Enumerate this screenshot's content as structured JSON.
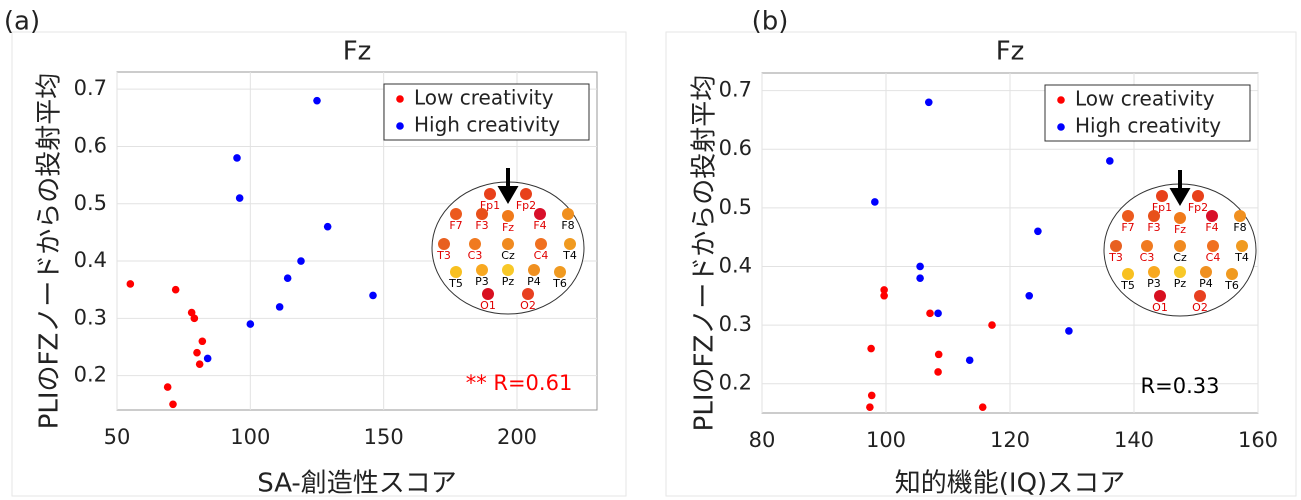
{
  "chart_data": [
    {
      "type": "scatter",
      "panel_label": "(a)",
      "title": "Fz",
      "x_label": "SA-創造性スコア",
      "y_label": "PLIのFZノードからの投射平均",
      "xlim": [
        50,
        230
      ],
      "ylim": [
        0.14,
        0.73
      ],
      "xticks": [
        50,
        100,
        150,
        200
      ],
      "yticks": [
        0.2,
        0.3,
        0.4,
        0.5,
        0.6,
        0.7
      ],
      "grid": true,
      "legend": "upper right",
      "series": [
        {
          "name": "Low creativity",
          "color": "#ff0000",
          "x": [
            55,
            72,
            78,
            79,
            82,
            80,
            81,
            69,
            71
          ],
          "values": [
            0.36,
            0.35,
            0.31,
            0.3,
            0.26,
            0.24,
            0.22,
            0.18,
            0.15
          ]
        },
        {
          "name": "High creativity",
          "color": "#0000ff",
          "x": [
            125,
            95,
            96,
            129,
            119,
            114,
            111,
            100,
            146,
            84
          ],
          "values": [
            0.68,
            0.58,
            0.51,
            0.46,
            0.4,
            0.37,
            0.32,
            0.29,
            0.34,
            0.23
          ]
        }
      ],
      "annotation": {
        "text": "** R=0.61",
        "color": "#ff0000"
      },
      "inset": [
        {
          "label": "Fp1",
          "color": "#e8401a",
          "label_color": "#e00000"
        },
        {
          "label": "Fp2",
          "color": "#e8401a",
          "label_color": "#e00000"
        },
        {
          "label": "F7",
          "color": "#ec5a1e",
          "label_color": "#e00000"
        },
        {
          "label": "F3",
          "color": "#e8501a",
          "label_color": "#e00000"
        },
        {
          "label": "Fz",
          "color": "#f07a1a",
          "label_color": "#e00000"
        },
        {
          "label": "F4",
          "color": "#d8102a",
          "label_color": "#e00000"
        },
        {
          "label": "F8",
          "color": "#f09020",
          "label_color": "#000000"
        },
        {
          "label": "T3",
          "color": "#e86020",
          "label_color": "#e00000"
        },
        {
          "label": "C3",
          "color": "#f07a20",
          "label_color": "#e00000"
        },
        {
          "label": "Cz",
          "color": "#f08a20",
          "label_color": "#000000"
        },
        {
          "label": "C4",
          "color": "#f07020",
          "label_color": "#e00000"
        },
        {
          "label": "T4",
          "color": "#f09a20",
          "label_color": "#000000"
        },
        {
          "label": "T5",
          "color": "#f8c020",
          "label_color": "#000000"
        },
        {
          "label": "P3",
          "color": "#f8a820",
          "label_color": "#000000"
        },
        {
          "label": "Pz",
          "color": "#f8c828",
          "label_color": "#000000"
        },
        {
          "label": "P4",
          "color": "#f09020",
          "label_color": "#000000"
        },
        {
          "label": "T6",
          "color": "#f09a20",
          "label_color": "#000000"
        },
        {
          "label": "O1",
          "color": "#d81020",
          "label_color": "#e00000"
        },
        {
          "label": "O2",
          "color": "#e84020",
          "label_color": "#e00000"
        }
      ]
    },
    {
      "type": "scatter",
      "panel_label": "(b)",
      "title": "Fz",
      "x_label": "知的機能(IQ)スコア",
      "y_label": "PLIのFZノードからの投射平均",
      "xlim": [
        80,
        160
      ],
      "ylim": [
        0.15,
        0.73
      ],
      "xticks": [
        80,
        100,
        120,
        140,
        160
      ],
      "yticks": [
        0.2,
        0.3,
        0.4,
        0.5,
        0.6,
        0.7
      ],
      "grid": true,
      "legend": "upper right",
      "series": [
        {
          "name": "Low creativity",
          "color": "#ff0000",
          "x": [
            97.6,
            99.7,
            99.7,
            97.7,
            97.4,
            107.1,
            108.5,
            108.4,
            117.1,
            115.6
          ],
          "values": [
            0.26,
            0.36,
            0.35,
            0.18,
            0.16,
            0.32,
            0.25,
            0.22,
            0.3,
            0.16
          ]
        },
        {
          "name": "High creativity",
          "color": "#0000ff",
          "x": [
            106.9,
            98.2,
            105.5,
            105.5,
            108.4,
            123.1,
            124.5,
            136.1,
            129.5,
            113.5
          ],
          "values": [
            0.68,
            0.51,
            0.4,
            0.38,
            0.32,
            0.35,
            0.46,
            0.58,
            0.29,
            0.24
          ]
        }
      ],
      "annotation": {
        "text": "R=0.33",
        "color": "#000000"
      },
      "inset": [
        {
          "label": "Fp1",
          "color": "#e8401a",
          "label_color": "#e00000"
        },
        {
          "label": "Fp2",
          "color": "#e8401a",
          "label_color": "#e00000"
        },
        {
          "label": "F7",
          "color": "#ec5a1e",
          "label_color": "#e00000"
        },
        {
          "label": "F3",
          "color": "#e8501a",
          "label_color": "#e00000"
        },
        {
          "label": "Fz",
          "color": "#f07a1a",
          "label_color": "#e00000"
        },
        {
          "label": "F4",
          "color": "#d8102a",
          "label_color": "#e00000"
        },
        {
          "label": "F8",
          "color": "#f09020",
          "label_color": "#000000"
        },
        {
          "label": "T3",
          "color": "#e86020",
          "label_color": "#e00000"
        },
        {
          "label": "C3",
          "color": "#f07a20",
          "label_color": "#e00000"
        },
        {
          "label": "Cz",
          "color": "#f08a20",
          "label_color": "#000000"
        },
        {
          "label": "C4",
          "color": "#f07020",
          "label_color": "#e00000"
        },
        {
          "label": "T4",
          "color": "#f09a20",
          "label_color": "#000000"
        },
        {
          "label": "T5",
          "color": "#f8c020",
          "label_color": "#000000"
        },
        {
          "label": "P3",
          "color": "#f8a820",
          "label_color": "#000000"
        },
        {
          "label": "Pz",
          "color": "#f8c828",
          "label_color": "#000000"
        },
        {
          "label": "P4",
          "color": "#f09020",
          "label_color": "#000000"
        },
        {
          "label": "T6",
          "color": "#f09a20",
          "label_color": "#000000"
        },
        {
          "label": "O1",
          "color": "#d81020",
          "label_color": "#e00000"
        },
        {
          "label": "O2",
          "color": "#e84020",
          "label_color": "#e00000"
        }
      ]
    }
  ]
}
